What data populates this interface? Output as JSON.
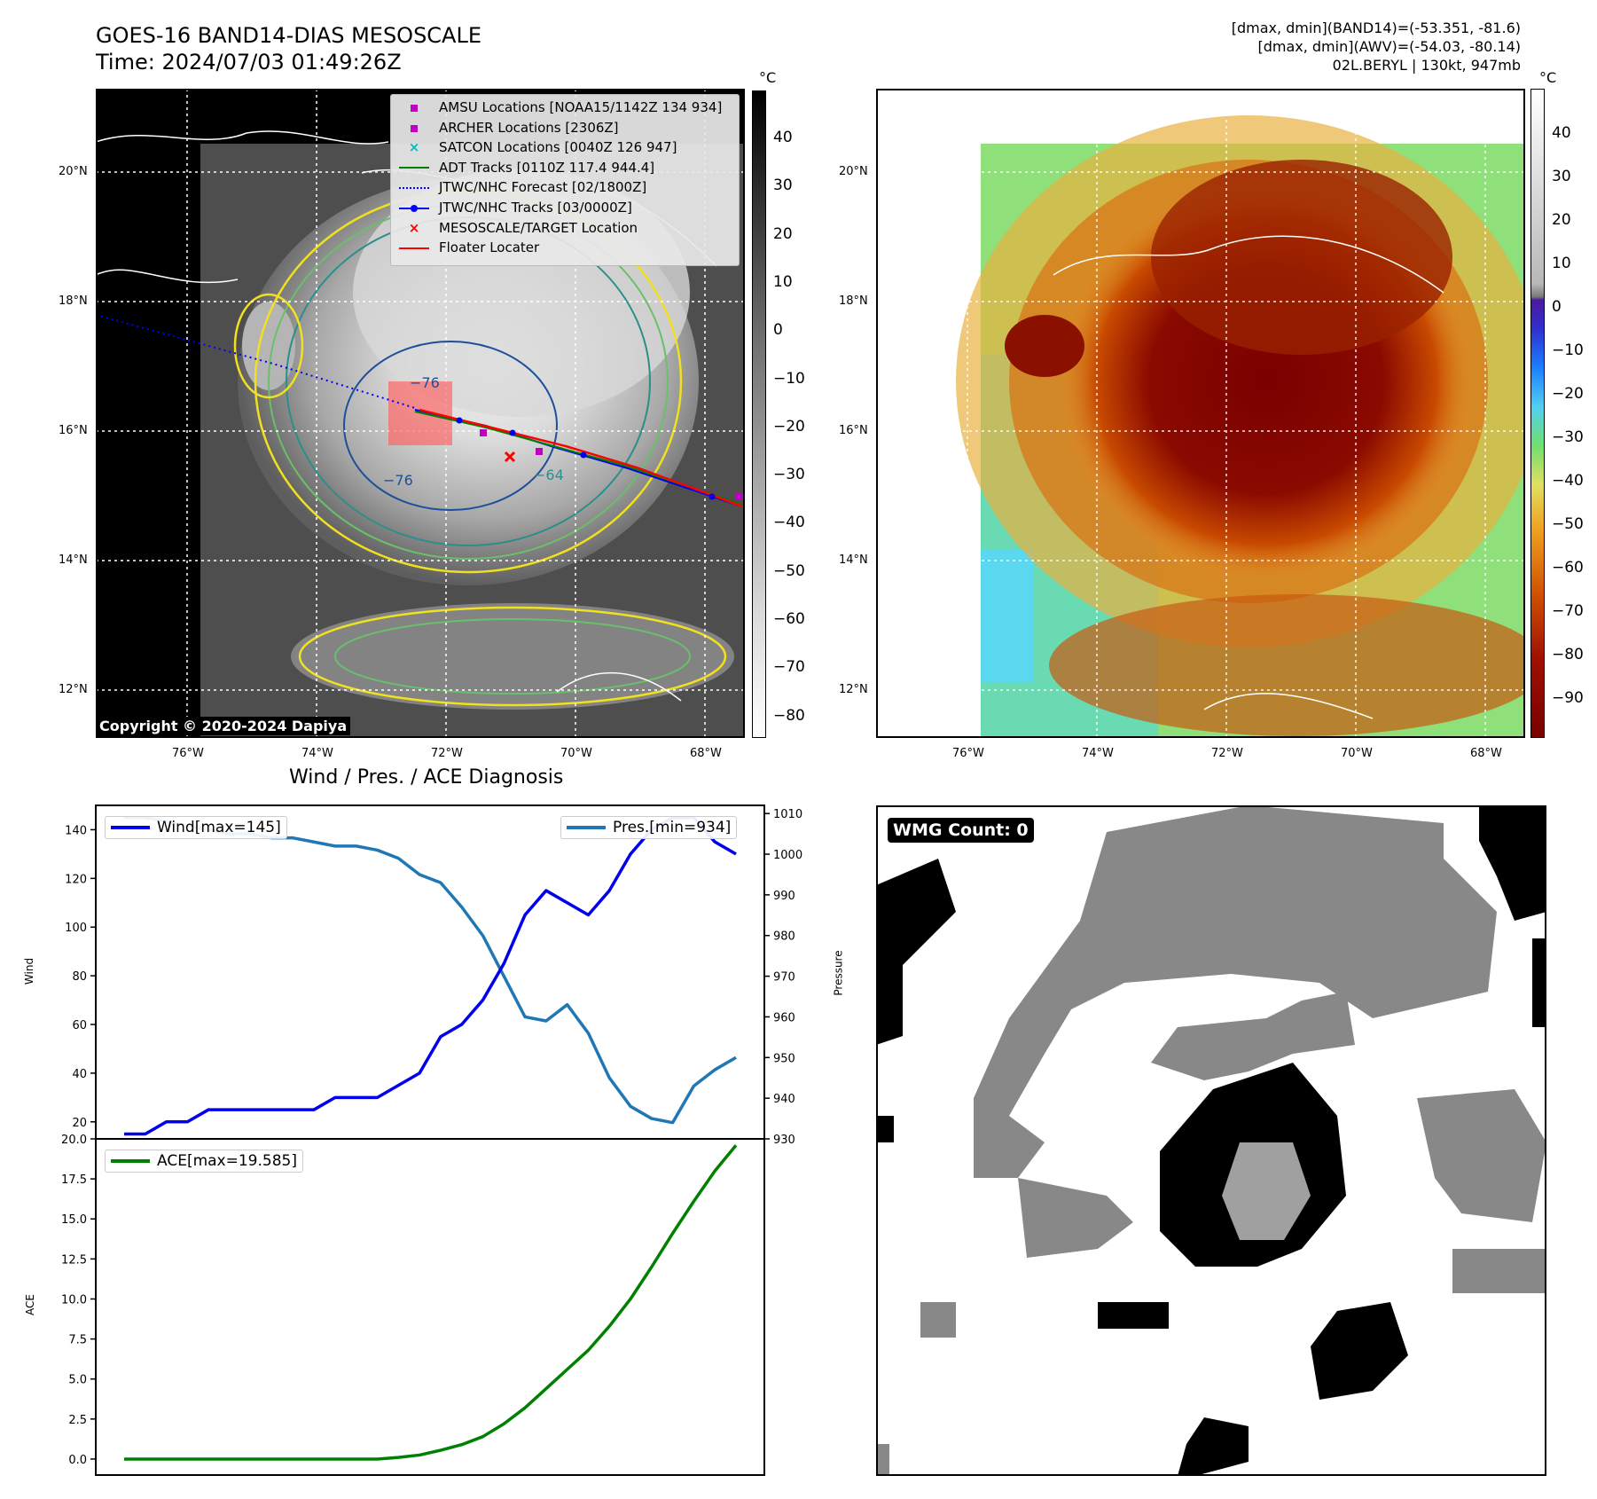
{
  "header": {
    "title_line1": "GOES-16 BAND14-DIAS MESOSCALE",
    "title_line2": "Time: 2024/07/03 01:49:26Z",
    "stats": [
      "[dmax, dmin](BAND14)=(-53.351, -81.6)",
      "[dmax, dmin](AWV)=(-54.03, -80.14)",
      "02L.BERYL | 130kt, 947mb"
    ]
  },
  "map": {
    "lat_labels": [
      "20°N",
      "18°N",
      "16°N",
      "14°N",
      "12°N"
    ],
    "lon_labels": [
      "76°W",
      "74°W",
      "72°W",
      "70°W",
      "68°W"
    ],
    "copyright": "Copyright © 2020-2024 Dapiya",
    "contour_labels": [
      "−76",
      "−76",
      "−64"
    ],
    "legend": [
      {
        "label": "AMSU Locations [NOAA15/1142Z 134 934]",
        "marker": "square",
        "color": "#c000c0"
      },
      {
        "label": "ARCHER Locations [2306Z]",
        "marker": "square",
        "color": "#c000c0"
      },
      {
        "label": "SATCON Locations [0040Z 126 947]",
        "marker": "x",
        "color": "#00bcbc"
      },
      {
        "label": "ADT Tracks [0110Z 117.4 944.4]",
        "marker": "line",
        "color": "#008000"
      },
      {
        "label": "JTWC/NHC Forecast [02/1800Z]",
        "marker": "dotted",
        "color": "#0000ff"
      },
      {
        "label": "JTWC/NHC Tracks [03/0000Z]",
        "marker": "dotline",
        "color": "#0000ff"
      },
      {
        "label": "MESOSCALE/TARGET Location",
        "marker": "bigx",
        "color": "#ff0000"
      },
      {
        "label": "Floater Locater",
        "marker": "line",
        "color": "#ff0000"
      }
    ]
  },
  "colorbar_left": {
    "unit": "°C",
    "ticks": [
      "40",
      "30",
      "20",
      "10",
      "0",
      "−10",
      "−20",
      "−30",
      "−40",
      "−50",
      "−60",
      "−70",
      "−80"
    ]
  },
  "colorbar_right": {
    "unit": "°C",
    "ticks": [
      "40",
      "30",
      "20",
      "10",
      "0",
      "−10",
      "−20",
      "−30",
      "−40",
      "−50",
      "−60",
      "−70",
      "−80",
      "−90"
    ]
  },
  "colors": {
    "wind": "#0000ee",
    "pressure": "#1f77b4",
    "ace": "#008000"
  },
  "chart_data": [
    {
      "type": "line",
      "title": "Wind / Pres. / ACE Diagnosis",
      "ylabel": "Wind",
      "y2label": "Pressure",
      "ylim": [
        13,
        150
      ],
      "y2lim": [
        930,
        1012
      ],
      "yticks": [
        20,
        40,
        60,
        80,
        100,
        120,
        140
      ],
      "y2ticks": [
        930,
        940,
        950,
        960,
        970,
        980,
        990,
        1000,
        1010
      ],
      "series": [
        {
          "name": "Wind[max=145]",
          "axis": "left",
          "values": [
            15,
            15,
            20,
            20,
            25,
            25,
            25,
            25,
            25,
            25,
            30,
            30,
            30,
            35,
            40,
            55,
            60,
            70,
            85,
            105,
            115,
            110,
            105,
            115,
            130,
            140,
            145,
            145,
            135,
            130
          ]
        },
        {
          "name": "Pres.[min=934]",
          "axis": "right",
          "values": [
            1009,
            1009,
            1008,
            1007,
            1006,
            1005,
            1005,
            1004,
            1004,
            1003,
            1002,
            1002,
            1001,
            999,
            995,
            993,
            987,
            980,
            970,
            960,
            959,
            963,
            956,
            945,
            938,
            935,
            934,
            943,
            947,
            950
          ]
        }
      ]
    },
    {
      "type": "line",
      "ylabel": "ACE",
      "ylim": [
        -1,
        20
      ],
      "yticks": [
        0.0,
        2.5,
        5.0,
        7.5,
        10.0,
        12.5,
        15.0,
        17.5,
        20.0
      ],
      "series": [
        {
          "name": "ACE[max=19.585]",
          "values": [
            0,
            0,
            0,
            0,
            0,
            0,
            0,
            0,
            0,
            0,
            0,
            0,
            0,
            0.1,
            0.25,
            0.55,
            0.9,
            1.4,
            2.2,
            3.2,
            4.4,
            5.6,
            6.8,
            8.3,
            10.0,
            12.0,
            14.1,
            16.1,
            18.0,
            19.6
          ]
        }
      ]
    }
  ],
  "wmg": {
    "label": "WMG Count: 0"
  }
}
